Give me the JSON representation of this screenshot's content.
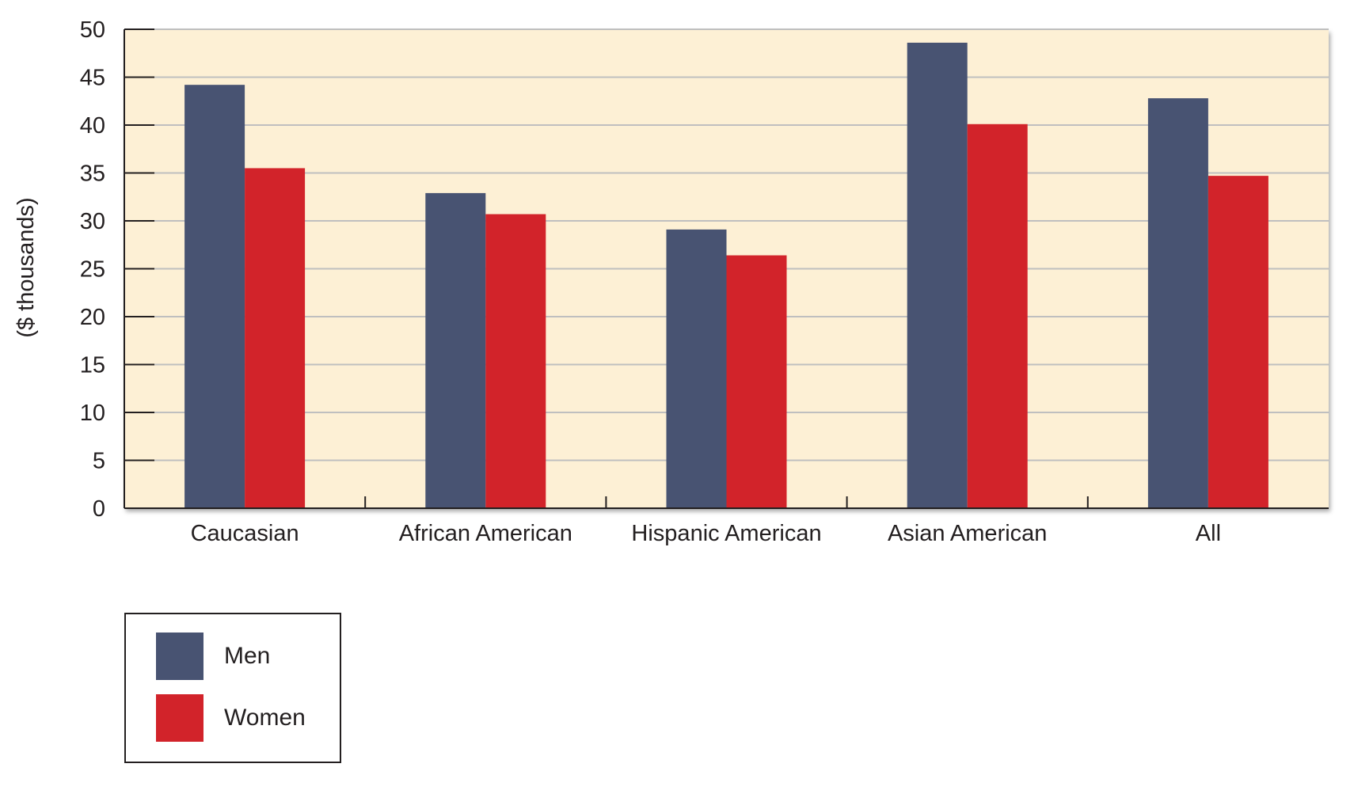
{
  "chart_data": {
    "type": "bar",
    "ylabel": "($ thousands)",
    "xlabel": "",
    "ylim": [
      0,
      50
    ],
    "yticks": [
      0,
      5,
      10,
      15,
      20,
      25,
      30,
      35,
      40,
      45,
      50
    ],
    "grid": true,
    "categories": [
      "Caucasian",
      "African American",
      "Hispanic American",
      "Asian American",
      "All"
    ],
    "series": [
      {
        "name": "Men",
        "color": "#485372",
        "values": [
          44.2,
          32.9,
          29.1,
          48.6,
          42.8
        ]
      },
      {
        "name": "Women",
        "color": "#d2232a",
        "values": [
          35.5,
          30.7,
          26.4,
          40.1,
          34.7
        ]
      }
    ],
    "legend": {
      "position": "bottom-left"
    },
    "colors": {
      "plot_background": "#fdf0d5",
      "gridline": "#bfbfbf",
      "axis": "#231f20"
    }
  }
}
